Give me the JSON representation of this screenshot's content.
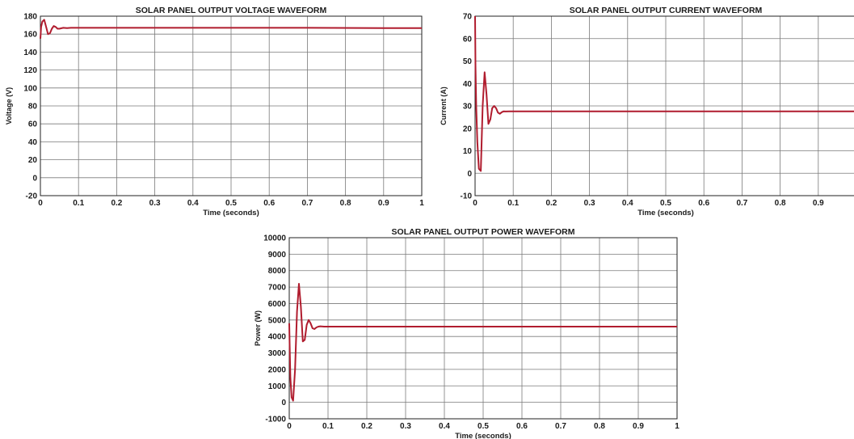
{
  "chart_data": [
    {
      "type": "line",
      "title": "SOLAR PANEL OUTPUT VOLTAGE WAVEFORM",
      "xlabel": "Time (seconds)",
      "ylabel": "Voltage (V)",
      "xlim": [
        0,
        1
      ],
      "ylim": [
        -20,
        180
      ],
      "xticks": [
        "0",
        "0.1",
        "0.2",
        "0.3",
        "0.4",
        "0.5",
        "0.6",
        "0.7",
        "0.8",
        "0.9",
        "1"
      ],
      "yticks": [
        "-20",
        "0",
        "20",
        "40",
        "60",
        "80",
        "100",
        "120",
        "140",
        "160",
        "180"
      ],
      "grid": true,
      "series": [
        {
          "color": "#b01c2e",
          "x": [
            0,
            0.002,
            0.005,
            0.01,
            0.015,
            0.02,
            0.025,
            0.03,
            0.035,
            0.04,
            0.045,
            0.05,
            0.06,
            0.07,
            0.08,
            0.1,
            0.3,
            0.5,
            0.7,
            0.9,
            1.0
          ],
          "y": [
            155,
            168,
            174,
            176,
            168,
            160,
            161,
            166,
            169,
            168,
            166,
            166,
            167,
            166.8,
            167,
            167,
            167,
            167,
            167,
            166.8,
            166.8
          ]
        }
      ]
    },
    {
      "type": "line",
      "title": "SOLAR PANEL OUTPUT CURRENT WAVEFORM",
      "xlabel": "Time (seconds)",
      "ylabel": "Current (A)",
      "xlim": [
        0,
        1
      ],
      "ylim": [
        -10,
        70
      ],
      "xticks": [
        "0",
        "0.1",
        "0.2",
        "0.3",
        "0.4",
        "0.5",
        "0.6",
        "0.7",
        "0.8",
        "0.9"
      ],
      "yticks": [
        "-10",
        "0",
        "10",
        "20",
        "30",
        "40",
        "50",
        "60",
        "70"
      ],
      "grid": true,
      "series": [
        {
          "color": "#b01c2e",
          "x": [
            0,
            0.001,
            0.003,
            0.006,
            0.01,
            0.015,
            0.02,
            0.025,
            0.03,
            0.035,
            0.04,
            0.045,
            0.05,
            0.055,
            0.06,
            0.065,
            0.07,
            0.075,
            0.08,
            0.09,
            0.1,
            0.2,
            0.4,
            0.6,
            0.8,
            1.0
          ],
          "y": [
            70,
            48,
            30,
            14,
            2,
            1,
            30,
            45,
            35,
            22,
            24,
            29,
            30,
            29,
            27,
            26.5,
            27.2,
            27.6,
            27.5,
            27.6,
            27.6,
            27.6,
            27.6,
            27.6,
            27.6,
            27.6
          ]
        }
      ]
    },
    {
      "type": "line",
      "title": "SOLAR PANEL OUTPUT POWER WAVEFORM",
      "xlabel": "Time (seconds)",
      "ylabel": "Power (W)",
      "xlim": [
        0,
        1
      ],
      "ylim": [
        -1000,
        10000
      ],
      "xticks": [
        "0",
        "0.1",
        "0.2",
        "0.3",
        "0.4",
        "0.5",
        "0.6",
        "0.7",
        "0.8",
        "0.9",
        "1"
      ],
      "yticks": [
        "-1000",
        "0",
        "1000",
        "2000",
        "3000",
        "4000",
        "5000",
        "6000",
        "7000",
        "8000",
        "9000",
        "10000"
      ],
      "grid": true,
      "series": [
        {
          "color": "#b01c2e",
          "x": [
            0,
            0.001,
            0.003,
            0.006,
            0.01,
            0.015,
            0.02,
            0.025,
            0.03,
            0.035,
            0.04,
            0.045,
            0.05,
            0.055,
            0.06,
            0.065,
            0.07,
            0.075,
            0.08,
            0.09,
            0.1,
            0.2,
            0.4,
            0.6,
            0.8,
            1.0
          ],
          "y": [
            4800,
            3500,
            1500,
            300,
            100,
            2000,
            5500,
            7200,
            5800,
            3700,
            3800,
            4700,
            5000,
            4800,
            4500,
            4450,
            4550,
            4600,
            4620,
            4600,
            4600,
            4600,
            4600,
            4600,
            4600,
            4600
          ]
        }
      ]
    }
  ]
}
